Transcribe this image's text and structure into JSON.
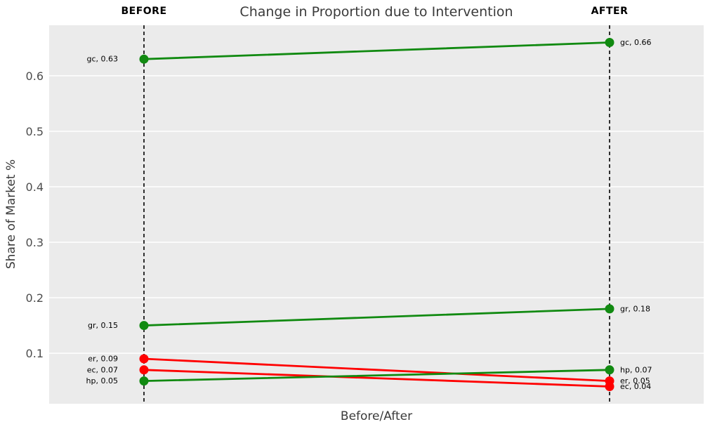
{
  "chart_data": {
    "type": "slope",
    "title": "Change in Proportion due to Intervention",
    "xlabel": "Before/After",
    "ylabel": "Share of Market %",
    "categories": [
      "BEFORE",
      "AFTER"
    ],
    "yticks": [
      0.1,
      0.2,
      0.3,
      0.4,
      0.5,
      0.6
    ],
    "ylim": [
      0.009,
      0.691
    ],
    "grid": true,
    "legend": "none",
    "plot_bg": "#ebebeb",
    "colors": {
      "increase": "#118a11",
      "decrease": "#ff0000",
      "divider": "#000000",
      "grid": "#ffffff",
      "tick_label": "#4d4d4d",
      "point_label": "#000000"
    },
    "point_label_format": "{name}, {value}",
    "series": [
      {
        "name": "gc",
        "before": 0.63,
        "after": 0.66,
        "trend": "increase"
      },
      {
        "name": "gr",
        "before": 0.15,
        "after": 0.18,
        "trend": "increase"
      },
      {
        "name": "er",
        "before": 0.09,
        "after": 0.05,
        "trend": "decrease"
      },
      {
        "name": "ec",
        "before": 0.07,
        "after": 0.04,
        "trend": "decrease"
      },
      {
        "name": "hp",
        "before": 0.05,
        "after": 0.07,
        "trend": "increase"
      }
    ]
  }
}
